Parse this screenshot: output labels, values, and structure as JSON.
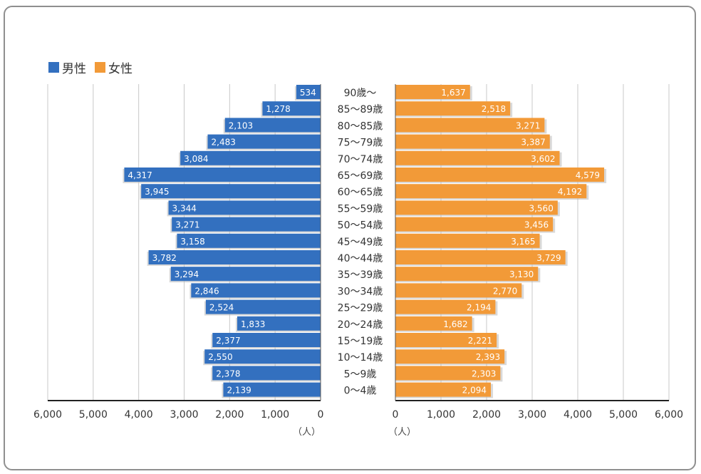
{
  "chart_data": {
    "type": "bar",
    "orientation": "horizontal",
    "subtype": "population-pyramid",
    "categories": [
      "90歳〜",
      "85〜89歳",
      "80〜85歳",
      "75〜79歳",
      "70〜74歳",
      "65〜69歳",
      "60〜65歳",
      "55〜59歳",
      "50〜54歳",
      "45〜49歳",
      "40〜44歳",
      "35〜39歳",
      "30〜34歳",
      "25〜29歳",
      "20〜24歳",
      "15〜19歳",
      "10〜14歳",
      "5〜9歳",
      "0〜4歳"
    ],
    "series": [
      {
        "name": "男性",
        "color": "#3370bf",
        "side": "left",
        "values": [
          534,
          1278,
          2103,
          2483,
          3084,
          4317,
          3945,
          3344,
          3271,
          3158,
          3782,
          3294,
          2846,
          2524,
          1833,
          2377,
          2550,
          2378,
          2139
        ],
        "labels": [
          "534",
          "1,278",
          "2,103",
          "2,483",
          "3,084",
          "4,317",
          "3,945",
          "3,344",
          "3,271",
          "3,158",
          "3,782",
          "3,294",
          "2,846",
          "2,524",
          "1,833",
          "2,377",
          "2,550",
          "2,378",
          "2,139"
        ]
      },
      {
        "name": "女性",
        "color": "#f29a38",
        "side": "right",
        "values": [
          1637,
          2518,
          3271,
          3387,
          3602,
          4579,
          4192,
          3560,
          3456,
          3165,
          3729,
          3130,
          2770,
          2194,
          1682,
          2221,
          2393,
          2303,
          2094
        ],
        "labels": [
          "1,637",
          "2,518",
          "3,271",
          "3,387",
          "3,602",
          "4,579",
          "4,192",
          "3,560",
          "3,456",
          "3,165",
          "3,729",
          "3,130",
          "2,770",
          "2,194",
          "1,682",
          "2,221",
          "2,393",
          "2,303",
          "2,094"
        ]
      }
    ],
    "xlim": [
      0,
      6000
    ],
    "x_ticks": [
      0,
      1000,
      2000,
      3000,
      4000,
      5000,
      6000
    ],
    "x_tick_labels_left": [
      "6,000",
      "5,000",
      "4,000",
      "3,000",
      "2,000",
      "1,000",
      "0"
    ],
    "x_tick_labels_right": [
      "0",
      "1,000",
      "2,000",
      "3,000",
      "4,000",
      "5,000",
      "6,000"
    ],
    "unit_label": "（人）",
    "grid": true,
    "legend_position": "top-left"
  }
}
